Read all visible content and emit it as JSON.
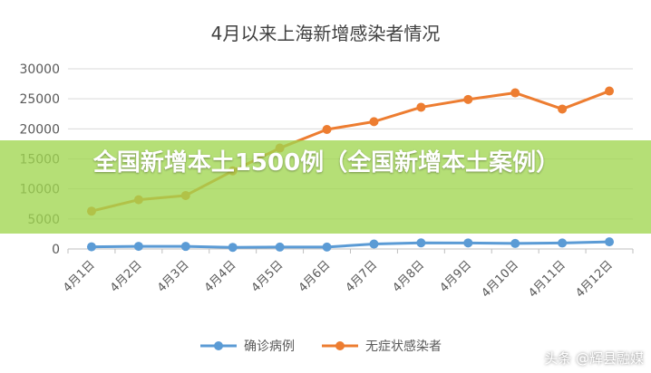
{
  "chart_data": {
    "type": "line",
    "title": "4月以来上海新增感染者情况",
    "categories": [
      "4月1日",
      "4月2日",
      "4月3日",
      "4月4日",
      "4月5日",
      "4月6日",
      "4月7日",
      "4月8日",
      "4月9日",
      "4月10日",
      "4月11日",
      "4月12日"
    ],
    "series": [
      {
        "name": "确诊病例",
        "color": "#5b9bd5",
        "values": [
          358,
          438,
          425,
          268,
          311,
          322,
          824,
          1015,
          1006,
          914,
          994,
          1189
        ]
      },
      {
        "name": "无症状感染者",
        "color": "#ed7d31",
        "values": [
          6300,
          8200,
          8900,
          13000,
          16800,
          19900,
          21200,
          23600,
          24900,
          26000,
          23300,
          26300
        ]
      }
    ],
    "yticks": [
      "0",
      "5000",
      "10000",
      "15000",
      "20000",
      "25000",
      "30000"
    ],
    "ylim": [
      0,
      30000
    ],
    "grid": true,
    "legend": "bottom"
  },
  "overlay": {
    "headline": "全国新增本土1500例（全国新增本土案例）",
    "watermark": "头条 @辉县融媒"
  }
}
